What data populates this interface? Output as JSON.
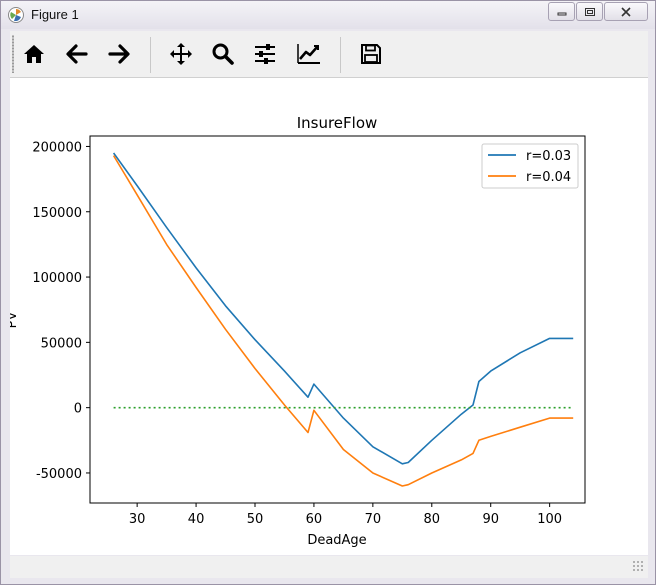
{
  "window": {
    "title": "Figure 1",
    "controls": [
      "minimize",
      "maximize",
      "close"
    ]
  },
  "toolbar": {
    "buttons": [
      {
        "name": "home-icon",
        "tooltip": "Home"
      },
      {
        "name": "back-icon",
        "tooltip": "Back"
      },
      {
        "name": "forward-icon",
        "tooltip": "Forward"
      },
      {
        "name": "pan-icon",
        "tooltip": "Pan"
      },
      {
        "name": "zoom-icon",
        "tooltip": "Zoom"
      },
      {
        "name": "subplots-icon",
        "tooltip": "Subplots"
      },
      {
        "name": "customize-icon",
        "tooltip": "Customize"
      },
      {
        "name": "save-icon",
        "tooltip": "Save"
      }
    ]
  },
  "chart_data": {
    "type": "line",
    "title": "InsureFlow",
    "xlabel": "DeadAge",
    "ylabel": "PV",
    "xlim": [
      22,
      106
    ],
    "ylim": [
      -73000,
      208000
    ],
    "xticks": [
      30,
      40,
      50,
      60,
      70,
      80,
      90,
      100
    ],
    "yticks": [
      -50000,
      0,
      50000,
      100000,
      150000,
      200000
    ],
    "grid": false,
    "legend_position": "upper right",
    "series": [
      {
        "name": "r=0.03",
        "color": "#1f77b4",
        "x": [
          26,
          30,
          35,
          40,
          45,
          50,
          55,
          59,
          60,
          65,
          70,
          75,
          76,
          80,
          85,
          87,
          88,
          90,
          95,
          100,
          104
        ],
        "y": [
          195000,
          170000,
          138000,
          107000,
          78000,
          52000,
          28000,
          8000,
          18000,
          -8000,
          -30000,
          -43000,
          -42000,
          -25000,
          -5000,
          2000,
          20000,
          28000,
          42000,
          53000,
          53000
        ]
      },
      {
        "name": "r=0.04",
        "color": "#ff7f0e",
        "x": [
          26,
          30,
          35,
          40,
          45,
          50,
          55,
          59,
          60,
          65,
          70,
          75,
          76,
          80,
          85,
          87,
          88,
          90,
          95,
          100,
          104
        ],
        "y": [
          193000,
          163000,
          125000,
          92000,
          60000,
          30000,
          2000,
          -19000,
          -2000,
          -32000,
          -50000,
          -60000,
          -59000,
          -50000,
          -40000,
          -35000,
          -25000,
          -22000,
          -15000,
          -8000,
          -8000
        ]
      },
      {
        "name": "",
        "color": "#2ca02c",
        "style": "dotted",
        "x": [
          26,
          104
        ],
        "y": [
          0,
          0
        ]
      }
    ]
  }
}
